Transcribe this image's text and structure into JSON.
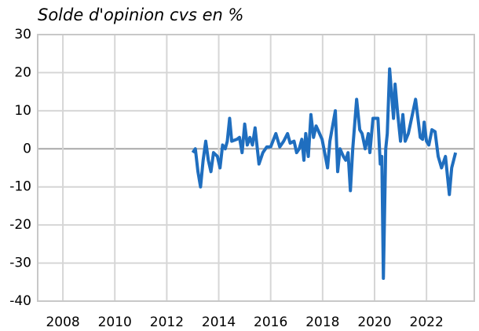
{
  "chart_data": {
    "type": "line",
    "title": "Solde d'opinion cvs en %",
    "x": [
      2013.0,
      2013.1,
      2013.2,
      2013.3,
      2013.4,
      2013.5,
      2013.6,
      2013.7,
      2013.8,
      2013.95,
      2014.05,
      2014.15,
      2014.25,
      2014.33,
      2014.42,
      2014.5,
      2014.7,
      2014.8,
      2014.9,
      2015.0,
      2015.1,
      2015.2,
      2015.3,
      2015.4,
      2015.55,
      2015.7,
      2015.85,
      2016.0,
      2016.2,
      2016.35,
      2016.5,
      2016.65,
      2016.75,
      2016.9,
      2017.0,
      2017.1,
      2017.2,
      2017.28,
      2017.35,
      2017.45,
      2017.55,
      2017.65,
      2017.75,
      2017.85,
      2017.98,
      2018.19,
      2018.28,
      2018.49,
      2018.58,
      2018.67,
      2018.8,
      2018.89,
      2018.98,
      2019.07,
      2019.16,
      2019.31,
      2019.43,
      2019.52,
      2019.64,
      2019.76,
      2019.82,
      2019.94,
      2020.13,
      2020.22,
      2020.28,
      2020.34,
      2020.43,
      2020.49,
      2020.58,
      2020.73,
      2020.79,
      2020.88,
      2021.0,
      2021.09,
      2021.18,
      2021.3,
      2021.58,
      2021.76,
      2021.85,
      2021.91,
      2022.0,
      2022.09,
      2022.21,
      2022.33,
      2022.45,
      2022.58,
      2022.73,
      2022.88,
      2022.97,
      2023.12
    ],
    "series": [
      {
        "name": "Solde d'opinion",
        "color": "#1f6ebf",
        "values": [
          -1,
          0,
          -6,
          -10,
          -3,
          2,
          -3,
          -6,
          -1,
          -2,
          -5,
          1,
          0,
          2,
          8,
          2,
          2.5,
          3,
          -1,
          6.5,
          1,
          3,
          1,
          5.5,
          -4,
          -1,
          0.5,
          0.5,
          4,
          0.5,
          2,
          4,
          1.5,
          2,
          -1,
          0,
          2.5,
          -3,
          4,
          -2,
          9,
          3,
          6,
          4.5,
          2.5,
          -5,
          2,
          10,
          -6,
          0,
          -2,
          -3,
          -1,
          -11,
          0,
          13,
          5,
          4,
          0,
          4,
          -1,
          8,
          8,
          -4,
          -2,
          -34,
          0,
          4,
          21,
          8,
          17,
          10,
          2,
          9,
          2,
          4,
          13,
          3,
          2.5,
          7,
          2,
          1,
          5,
          4.5,
          -2,
          -5,
          -2,
          -12,
          -5,
          -1
        ]
      }
    ],
    "xlim": [
      2007.03,
      2023.84
    ],
    "xticks": [
      2008,
      2010,
      2012,
      2014,
      2016,
      2018,
      2020,
      2022
    ],
    "ylim": [
      -40,
      30
    ],
    "yticks": [
      -40,
      -30,
      -20,
      -10,
      0,
      10,
      20,
      30
    ],
    "grid": true
  }
}
